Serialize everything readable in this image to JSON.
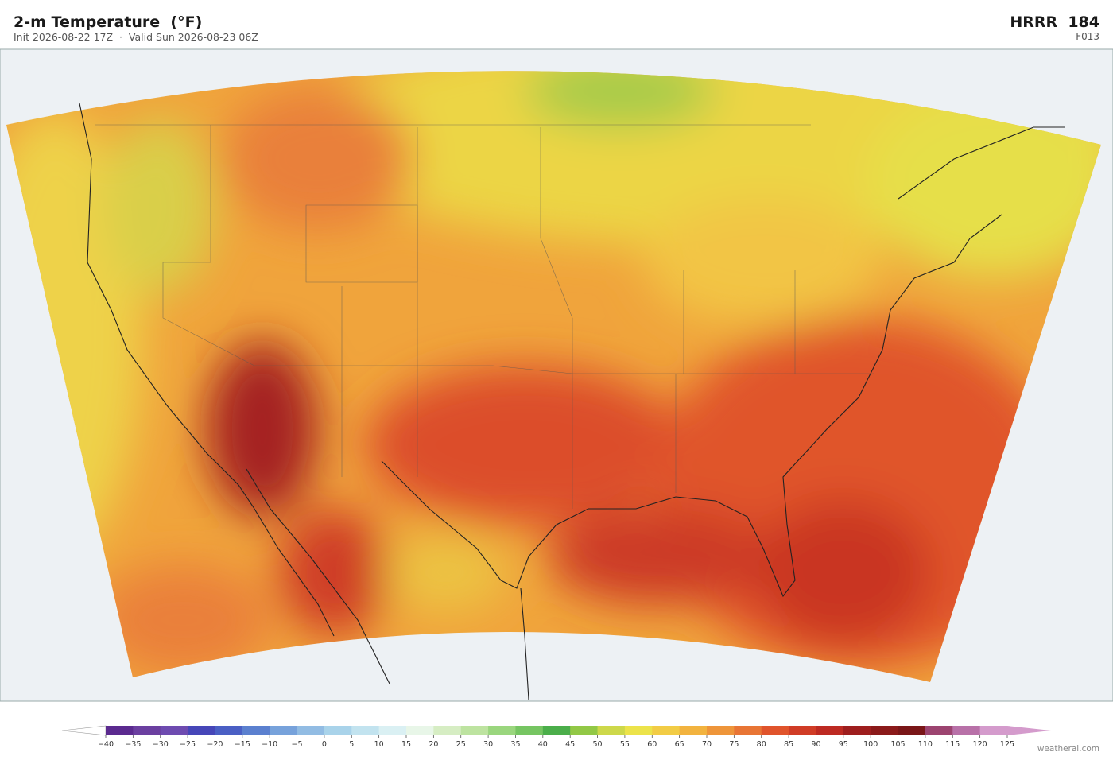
{
  "header": {
    "title": "2-m Temperature  (°F)",
    "subtitle": "Init 2026-08-22 17Z  ·  Valid Sun 2026-08-23 06Z",
    "model": "HRRR  184",
    "forecast_hour": "F013"
  },
  "colorbar": {
    "ticks": [
      {
        "value": -40,
        "label": "−40"
      },
      {
        "value": -35,
        "label": "−35"
      },
      {
        "value": -30,
        "label": "−30"
      },
      {
        "value": -25,
        "label": "−25"
      },
      {
        "value": -20,
        "label": "−20"
      },
      {
        "value": -15,
        "label": "−15"
      },
      {
        "value": -10,
        "label": "−10"
      },
      {
        "value": -5,
        "label": "−5"
      },
      0,
      5,
      10,
      15,
      20,
      25,
      30,
      35,
      40,
      45,
      50,
      55,
      60,
      65,
      70,
      75,
      80,
      85,
      90,
      95,
      100,
      105,
      110,
      115,
      120,
      125
    ],
    "colors": [
      "#5b2a8f",
      "#6b3fa0",
      "#6e4bb0",
      "#4646b8",
      "#4a5fc4",
      "#5b80cf",
      "#77a2db",
      "#92bce3",
      "#a9d3ea",
      "#c2e3ef",
      "#daf0f3",
      "#e8f6e8",
      "#d6edc3",
      "#bde3a0",
      "#9ad67e",
      "#76c562",
      "#4bae4a",
      "#92c846",
      "#cdd84a",
      "#ece34a",
      "#f2cc45",
      "#f2b33f",
      "#ee953a",
      "#e87535",
      "#e0542c",
      "#d03c26",
      "#bd2a22",
      "#9e1e1e",
      "#8b1a1a",
      "#7a1618",
      "#9c4470",
      "#b871a8",
      "#d49bcc"
    ],
    "under_color": "#ffffff",
    "over_color": "#d49bcc"
  },
  "credit": "weatherai.com"
}
